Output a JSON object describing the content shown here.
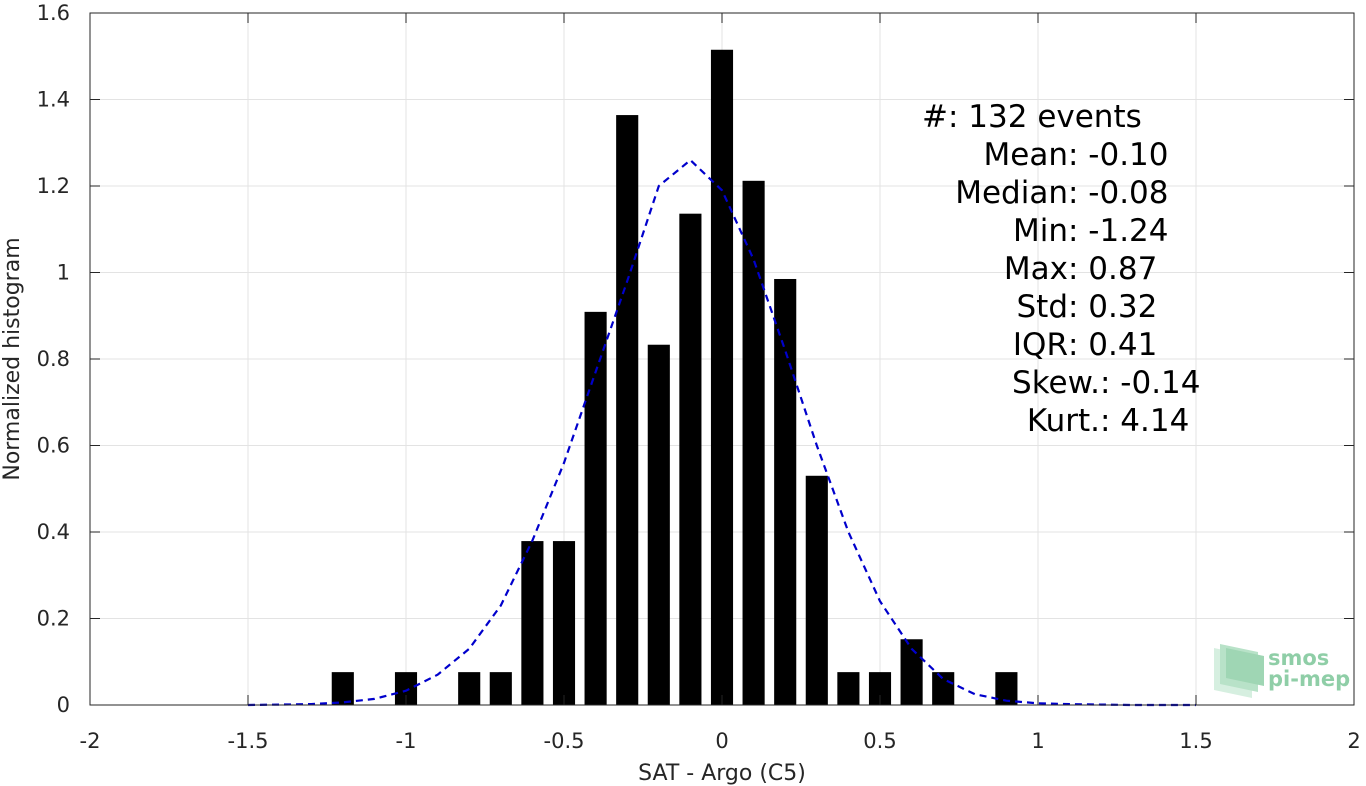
{
  "chart_data": {
    "type": "bar",
    "title": "",
    "xlabel": "SAT - Argo (C5)",
    "ylabel": "Normalized histogram",
    "xlim": [
      -2,
      2
    ],
    "ylim": [
      0,
      1.6
    ],
    "grid": true,
    "xticks": [
      -2,
      -1.5,
      -1,
      -0.5,
      0,
      0.5,
      1,
      1.5,
      2
    ],
    "xtick_labels": [
      "-2",
      "-1.5",
      "-1",
      "-0.5",
      "0",
      "0.5",
      "1",
      "1.5",
      "2"
    ],
    "yticks": [
      0,
      0.2,
      0.4,
      0.6,
      0.8,
      1,
      1.2,
      1.4,
      1.6
    ],
    "ytick_labels": [
      "0",
      "0.2",
      "0.4",
      "0.6",
      "0.8",
      "1",
      "1.2",
      "1.4",
      "1.6"
    ],
    "bar_color": "#000000",
    "bar_width": 0.07,
    "bars": [
      {
        "x": -1.2,
        "y": 0.076
      },
      {
        "x": -1.0,
        "y": 0.076
      },
      {
        "x": -0.8,
        "y": 0.076
      },
      {
        "x": -0.7,
        "y": 0.076
      },
      {
        "x": -0.6,
        "y": 0.379
      },
      {
        "x": -0.5,
        "y": 0.379
      },
      {
        "x": -0.4,
        "y": 0.909
      },
      {
        "x": -0.3,
        "y": 1.364
      },
      {
        "x": -0.2,
        "y": 0.833
      },
      {
        "x": -0.1,
        "y": 1.136
      },
      {
        "x": 0.0,
        "y": 1.515
      },
      {
        "x": 0.1,
        "y": 1.212
      },
      {
        "x": 0.2,
        "y": 0.985
      },
      {
        "x": 0.3,
        "y": 0.53
      },
      {
        "x": 0.4,
        "y": 0.076
      },
      {
        "x": 0.5,
        "y": 0.076
      },
      {
        "x": 0.6,
        "y": 0.152
      },
      {
        "x": 0.7,
        "y": 0.076
      },
      {
        "x": 0.9,
        "y": 0.076
      }
    ],
    "fit_curve": {
      "style": "dashed",
      "color": "#0000cc",
      "points": [
        [
          -1.5,
          0.0
        ],
        [
          -1.4,
          0.001
        ],
        [
          -1.3,
          0.002
        ],
        [
          -1.2,
          0.006
        ],
        [
          -1.1,
          0.014
        ],
        [
          -1.0,
          0.033
        ],
        [
          -0.9,
          0.07
        ],
        [
          -0.8,
          0.13
        ],
        [
          -0.7,
          0.23
        ],
        [
          -0.6,
          0.38
        ],
        [
          -0.5,
          0.56
        ],
        [
          -0.4,
          0.77
        ],
        [
          -0.3,
          0.98
        ],
        [
          -0.2,
          1.2
        ],
        [
          -0.1,
          1.26
        ],
        [
          0.0,
          1.19
        ],
        [
          0.1,
          1.03
        ],
        [
          0.2,
          0.82
        ],
        [
          0.3,
          0.6
        ],
        [
          0.4,
          0.4
        ],
        [
          0.5,
          0.24
        ],
        [
          0.6,
          0.13
        ],
        [
          0.7,
          0.06
        ],
        [
          0.8,
          0.025
        ],
        [
          0.9,
          0.01
        ],
        [
          1.0,
          0.004
        ],
        [
          1.1,
          0.002
        ],
        [
          1.2,
          0.001
        ],
        [
          1.3,
          0.0
        ],
        [
          1.4,
          0.0
        ],
        [
          1.5,
          0.0
        ]
      ]
    },
    "annotations": [
      {
        "key": "#",
        "sep": " : ",
        "value": "132 events"
      },
      {
        "key": "Mean",
        "sep": " : ",
        "value": "-0.10"
      },
      {
        "key": "Median",
        "sep": " : ",
        "value": "-0.08"
      },
      {
        "key": "Min",
        "sep": " : ",
        "value": "-1.24"
      },
      {
        "key": "Max",
        "sep": " : ",
        "value": "0.87"
      },
      {
        "key": "Std",
        "sep": " : ",
        "value": "0.32"
      },
      {
        "key": "IQR",
        "sep": " : ",
        "value": "0.41"
      },
      {
        "key": "Skew.",
        "sep": " : ",
        "value": "-0.14"
      },
      {
        "key": "Kurt.",
        "sep": " : ",
        "value": "4.14"
      }
    ]
  },
  "logo": {
    "line1": "smos",
    "line2": "pi-mep",
    "color": "#8fcea7"
  }
}
